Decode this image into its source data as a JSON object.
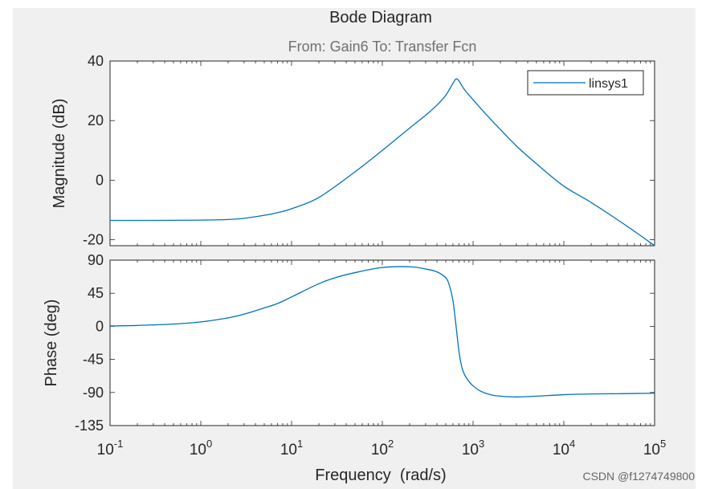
{
  "figure": {
    "title": "Bode Diagram",
    "subtitle": "From: Gain6  To: Transfer Fcn",
    "watermark": "CSDN @f1274749800"
  },
  "colors": {
    "figure_bg": "#f0f0f0",
    "axes_bg": "#ffffff",
    "line": "#0072bd",
    "text": "#262626",
    "subtitle": "#707070"
  },
  "chart_data": [
    {
      "type": "line",
      "panel": "magnitude",
      "ylabel": "Magnitude (dB)",
      "xscale": "log",
      "xlim": [
        0.1,
        100000
      ],
      "ylim": [
        -22,
        40
      ],
      "yticks": [
        -20,
        0,
        20,
        40
      ],
      "ytick_labels": [
        "-20",
        "0",
        "20",
        "40"
      ],
      "grid": false,
      "legend": {
        "entries": [
          "linsys1"
        ],
        "placement": "top-right"
      },
      "series": [
        {
          "name": "linsys1",
          "x": [
            0.1,
            0.3,
            1,
            2,
            3,
            5,
            7,
            10,
            20,
            50,
            100,
            200,
            300,
            400,
            500,
            600,
            650,
            700,
            800,
            1000,
            1500,
            2000,
            3000,
            5000,
            10000,
            20000,
            50000,
            100000
          ],
          "y": [
            -13.5,
            -13.5,
            -13.4,
            -13.2,
            -12.8,
            -11.8,
            -10.9,
            -9.6,
            -5.8,
            2.8,
            10.0,
            17.5,
            21.8,
            25.2,
            28.5,
            32.5,
            34.0,
            33.3,
            30.5,
            27.0,
            21.0,
            17.0,
            11.5,
            5.5,
            -2.0,
            -7.5,
            -15.5,
            -22.0
          ]
        }
      ]
    },
    {
      "type": "line",
      "panel": "phase",
      "ylabel": "Phase (deg)",
      "xlabel": "Frequency  (rad/s)",
      "xscale": "log",
      "xlim": [
        0.1,
        100000
      ],
      "ylim": [
        -135,
        90
      ],
      "yticks": [
        -135,
        -90,
        -45,
        0,
        45,
        90
      ],
      "ytick_labels": [
        "-135",
        "-90",
        "-45",
        "0",
        "45",
        "90"
      ],
      "xtick_labels": [
        {
          "base": "10",
          "exp": "-1"
        },
        {
          "base": "10",
          "exp": "0"
        },
        {
          "base": "10",
          "exp": "1"
        },
        {
          "base": "10",
          "exp": "2"
        },
        {
          "base": "10",
          "exp": "3"
        },
        {
          "base": "10",
          "exp": "4"
        },
        {
          "base": "10",
          "exp": "5"
        }
      ],
      "grid": false,
      "series": [
        {
          "name": "linsys1",
          "x": [
            0.1,
            0.2,
            0.5,
            1,
            2,
            3,
            5,
            7,
            10,
            20,
            30,
            50,
            100,
            200,
            300,
            400,
            500,
            550,
            600,
            650,
            700,
            750,
            800,
            900,
            1000,
            1200,
            1500,
            2000,
            3000,
            5000,
            10000,
            20000,
            50000,
            100000
          ],
          "y": [
            0.5,
            1.2,
            3.0,
            6.0,
            11.5,
            16.5,
            25.0,
            31.0,
            40.0,
            58.0,
            66.0,
            73.0,
            80.0,
            81.0,
            78.0,
            74.0,
            66.0,
            55.0,
            35.0,
            0.0,
            -35.0,
            -55.0,
            -65.0,
            -75.0,
            -81.0,
            -88.0,
            -92.5,
            -95.0,
            -96.0,
            -95.0,
            -93.0,
            -92.0,
            -91.5,
            -91.0
          ]
        }
      ]
    }
  ]
}
